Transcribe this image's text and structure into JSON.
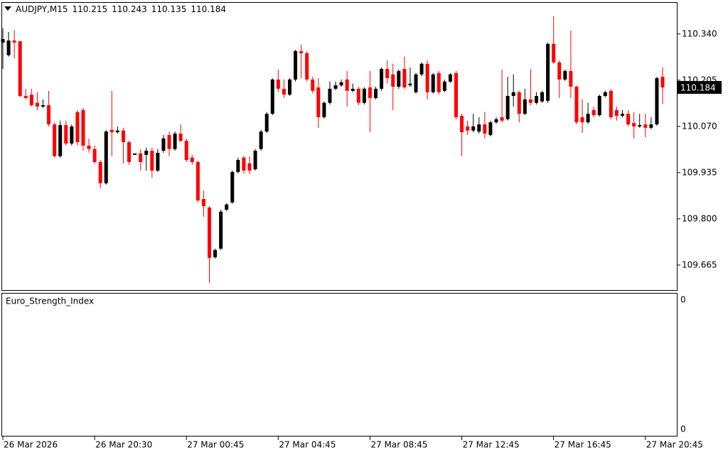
{
  "chart_data": {
    "type": "candlestick",
    "symbol": "AUDJPY,M15",
    "header_values": [
      110.215,
      110.243,
      110.135,
      110.184
    ],
    "current_price": 110.184,
    "bull_color": "#000000",
    "bear_color": "#ff0000",
    "ylim": [
      109.592,
      110.431
    ],
    "yticks": [
      {
        "value": 110.34,
        "label": "110.340"
      },
      110.205,
      {
        "value": 110.07,
        "label": "110.070"
      },
      109.935,
      {
        "value": 109.8,
        "label": "109.800"
      },
      109.665
    ],
    "xticks": [
      {
        "value": 0,
        "label": "26 Mar 2026"
      },
      {
        "value": 16,
        "label": "26 Mar 20:30"
      },
      {
        "value": 32,
        "label": "27 Mar 00:45"
      },
      {
        "value": 48,
        "label": "27 Mar 04:45"
      },
      {
        "value": 64,
        "label": "27 Mar 08:45"
      },
      {
        "value": 80,
        "label": "27 Mar 12:45"
      },
      {
        "value": 96,
        "label": "27 Mar 16:45"
      },
      {
        "value": 112,
        "label": "27 Mar 20:45"
      }
    ],
    "open": [
      110.315,
      110.278,
      110.321,
      110.319,
      110.159,
      110.163,
      110.139,
      110.128,
      110.132,
      110.076,
      109.983,
      110.074,
      110.02,
      110.112,
      110.118,
      110.014,
      110.004,
      109.966,
      109.904,
      110.06,
      110.053,
      110.058,
      110.024,
      109.987,
      109.991,
      109.987,
      109.999,
      109.941,
      109.999,
      110.045,
      110.004,
      110.049,
      110.028,
      109.979,
      109.966,
      109.858,
      109.833,
      109.688,
      109.713,
      109.827,
      109.848,
      109.937,
      109.979,
      109.962,
      109.945,
      110.004,
      110.055,
      110.107,
      110.207,
      110.18,
      110.163,
      110.207,
      110.29,
      110.284,
      110.207,
      110.184,
      110.097,
      110.139,
      110.18,
      110.19,
      110.207,
      110.174,
      110.18,
      110.139,
      110.184,
      110.153,
      110.18,
      110.238,
      110.222,
      110.186,
      110.238,
      110.19,
      110.17,
      110.222,
      110.253,
      110.17,
      110.226,
      110.174,
      110.201,
      110.226,
      110.101,
      110.07,
      110.058,
      110.055,
      110.076,
      110.045,
      110.082,
      110.097,
      110.091,
      110.159,
      110.17,
      110.107,
      110.149,
      110.139,
      110.143,
      110.145,
      110.311,
      110.257,
      110.207,
      110.232,
      110.186,
      110.097,
      110.082,
      110.118,
      110.103,
      110.159,
      110.174,
      110.118,
      110.101,
      110.107,
      110.08,
      110.07,
      110.076,
      110.066,
      110.076,
      110.215
    ],
    "high": [
      110.357,
      110.346,
      110.352,
      110.319,
      110.18,
      110.18,
      110.17,
      110.149,
      110.174,
      110.082,
      110.087,
      110.087,
      110.076,
      110.118,
      110.124,
      110.035,
      110.014,
      109.972,
      110.06,
      110.174,
      110.07,
      110.066,
      110.028,
      109.991,
      110.004,
      110.008,
      110.008,
      110.004,
      110.045,
      110.055,
      110.055,
      110.076,
      110.035,
      109.987,
      109.97,
      109.883,
      109.837,
      109.713,
      109.827,
      109.846,
      109.941,
      109.979,
      109.983,
      109.983,
      110.004,
      110.06,
      110.112,
      110.211,
      110.236,
      110.207,
      110.211,
      110.294,
      110.309,
      110.29,
      110.215,
      110.211,
      110.143,
      110.201,
      110.201,
      110.207,
      110.232,
      110.195,
      110.186,
      110.184,
      110.232,
      110.186,
      110.242,
      110.263,
      110.253,
      110.236,
      110.274,
      110.242,
      110.226,
      110.257,
      110.263,
      110.226,
      110.232,
      110.207,
      110.226,
      110.232,
      110.107,
      110.087,
      110.107,
      110.097,
      110.112,
      110.087,
      110.097,
      110.236,
      110.215,
      110.222,
      110.174,
      110.18,
      110.238,
      110.17,
      110.174,
      110.315,
      110.392,
      110.263,
      110.236,
      110.35,
      110.19,
      110.149,
      110.139,
      110.128,
      110.163,
      110.174,
      110.178,
      110.128,
      110.118,
      110.118,
      110.112,
      110.107,
      110.107,
      110.097,
      110.215,
      110.243
    ],
    "low": [
      110.238,
      110.274,
      110.269,
      110.155,
      110.149,
      110.128,
      110.118,
      110.124,
      110.07,
      109.979,
      109.979,
      110.014,
      110.014,
      110.014,
      109.999,
      109.993,
      109.962,
      109.889,
      109.9,
      109.983,
      110.049,
      109.962,
      109.958,
      109.987,
      109.941,
      109.941,
      109.92,
      109.937,
      109.993,
      109.983,
      109.999,
      110.024,
      109.966,
      109.958,
      109.848,
      109.806,
      109.613,
      109.684,
      109.709,
      109.823,
      109.844,
      109.933,
      109.933,
      109.931,
      109.941,
      109.999,
      110.051,
      110.103,
      110.17,
      110.153,
      110.159,
      110.201,
      110.211,
      110.201,
      110.166,
      110.066,
      110.093,
      110.134,
      110.176,
      110.186,
      110.128,
      110.17,
      110.132,
      110.134,
      110.053,
      110.149,
      110.174,
      110.195,
      110.118,
      110.18,
      110.18,
      110.186,
      110.166,
      110.217,
      110.149,
      110.166,
      110.163,
      110.17,
      110.197,
      110.091,
      109.983,
      110.045,
      110.053,
      110.049,
      110.035,
      110.041,
      110.078,
      110.082,
      110.087,
      110.128,
      110.082,
      110.103,
      110.132,
      110.134,
      110.139,
      110.139,
      110.253,
      110.153,
      110.203,
      110.153,
      110.076,
      110.051,
      110.078,
      110.097,
      110.099,
      110.155,
      110.091,
      110.087,
      110.097,
      110.07,
      110.035,
      110.066,
      110.039,
      110.062,
      110.072,
      110.135
    ],
    "close": [
      110.325,
      110.321,
      110.315,
      110.159,
      110.153,
      110.132,
      110.128,
      110.132,
      110.076,
      109.983,
      110.074,
      110.02,
      110.07,
      110.024,
      110.014,
      110.004,
      109.966,
      109.904,
      110.055,
      110.053,
      110.058,
      110.024,
      109.966,
      109.991,
      109.966,
      109.999,
      109.941,
      109.993,
      110.035,
      110.004,
      110.049,
      110.028,
      109.972,
      109.966,
      109.854,
      109.837,
      109.686,
      109.709,
      109.821,
      109.842,
      109.937,
      109.972,
      109.941,
      109.941,
      109.999,
      110.055,
      110.107,
      110.207,
      110.18,
      110.163,
      110.207,
      110.29,
      110.284,
      110.207,
      110.174,
      110.097,
      110.139,
      110.18,
      110.19,
      110.199,
      110.174,
      110.18,
      110.139,
      110.18,
      110.153,
      110.18,
      110.238,
      110.211,
      110.186,
      110.232,
      110.184,
      110.195,
      110.222,
      110.253,
      110.17,
      110.222,
      110.17,
      110.201,
      110.222,
      110.097,
      110.053,
      110.058,
      110.07,
      110.076,
      110.049,
      110.082,
      110.091,
      110.087,
      110.159,
      110.17,
      110.107,
      110.149,
      110.139,
      110.159,
      110.17,
      110.311,
      110.257,
      110.207,
      110.232,
      110.186,
      110.082,
      110.082,
      110.107,
      110.103,
      110.159,
      110.17,
      110.097,
      110.101,
      110.107,
      110.076,
      110.07,
      110.074,
      110.066,
      110.076,
      110.211,
      110.184
    ],
    "indicator": {
      "name": "Euro_Strength_Index",
      "yticks": [
        0,
        0
      ]
    }
  }
}
